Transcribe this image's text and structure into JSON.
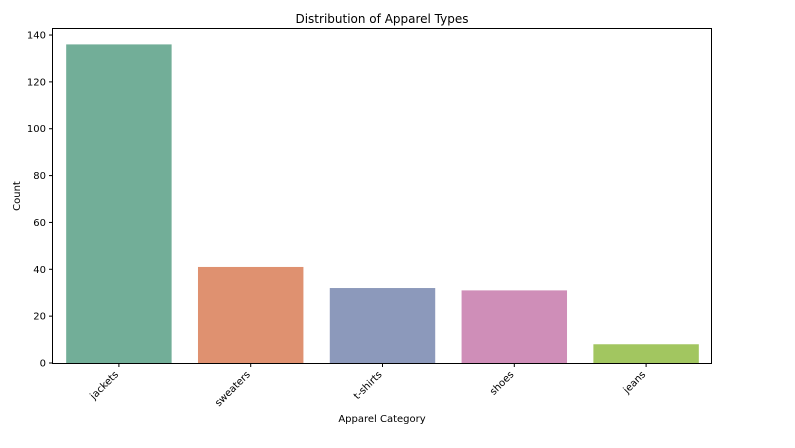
{
  "chart_data": {
    "type": "bar",
    "title": "Distribution of Apparel Types",
    "xlabel": "Apparel Category",
    "ylabel": "Count",
    "categories": [
      "jackets",
      "sweaters",
      "t-shirts",
      "shoes",
      "jeans"
    ],
    "values": [
      136,
      41,
      32,
      31,
      8
    ],
    "colors": [
      "#72ae98",
      "#df9170",
      "#8c99bb",
      "#cf8eb8",
      "#a2c660"
    ],
    "ylim": [
      0,
      143
    ],
    "yticks": [
      0,
      20,
      40,
      60,
      80,
      100,
      120,
      140
    ],
    "grid": false,
    "legend": "none",
    "xtick_rotation": 45
  }
}
